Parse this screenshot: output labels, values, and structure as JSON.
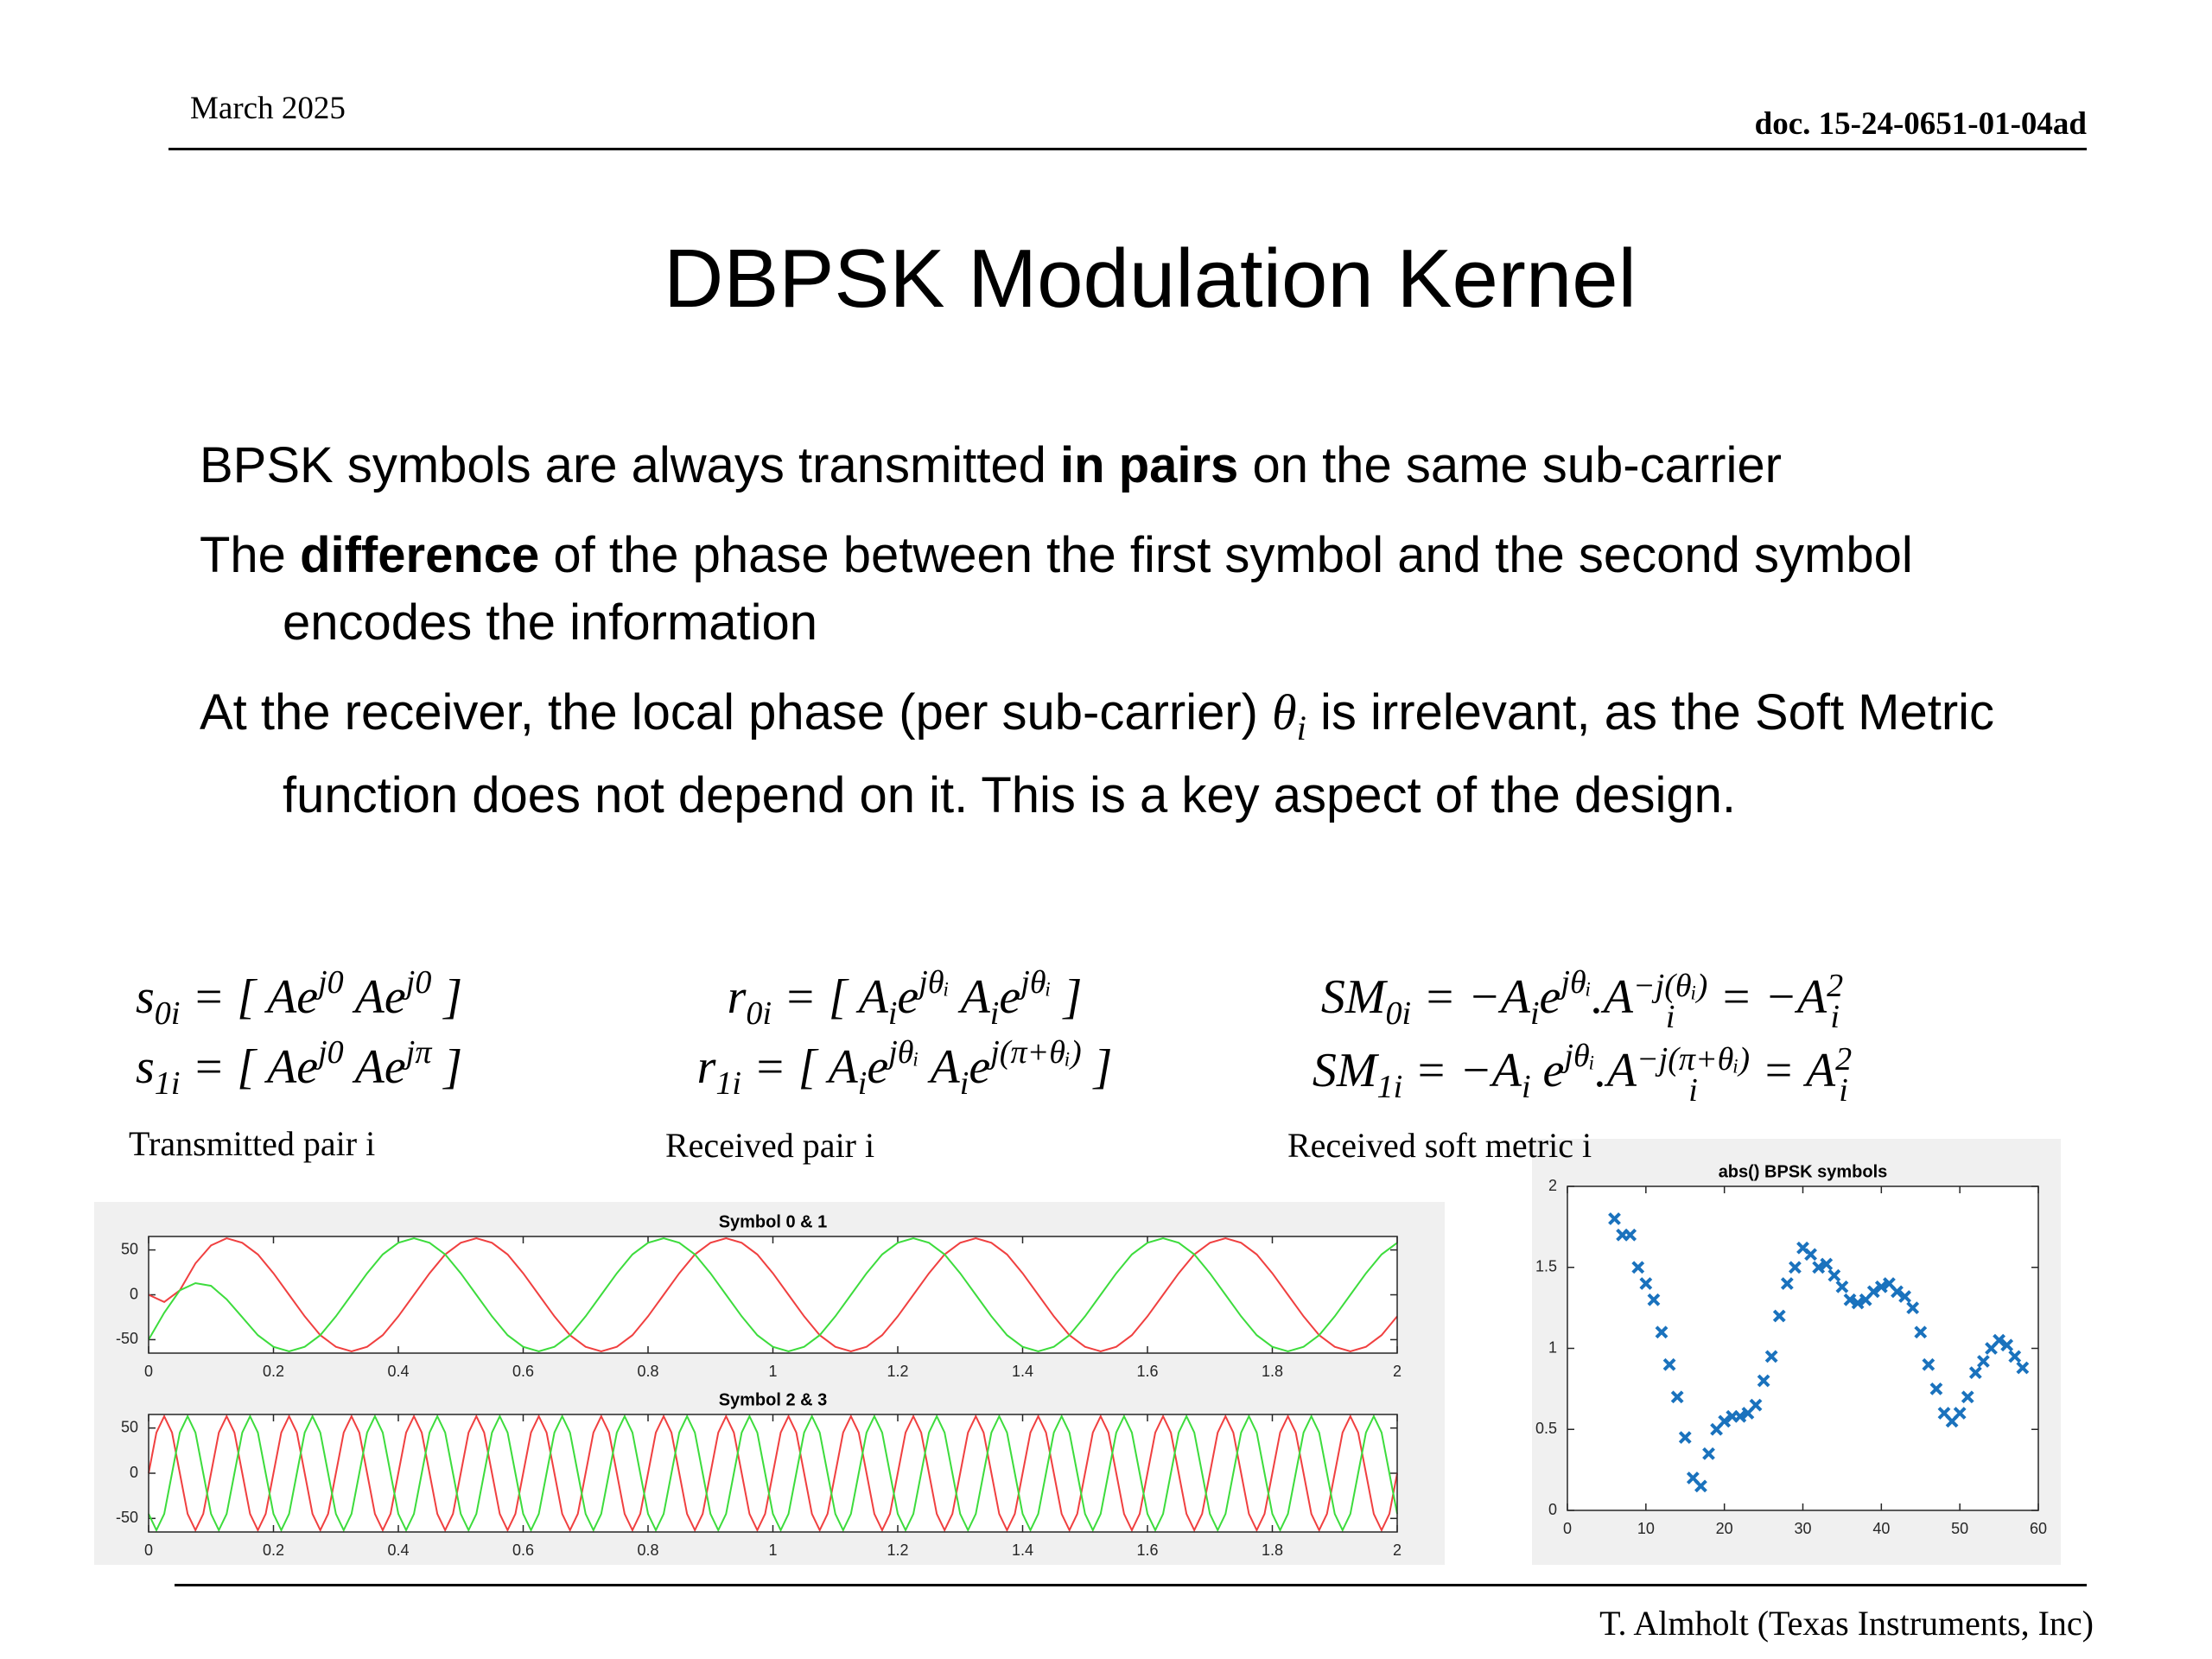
{
  "header": {
    "date": "March 2025",
    "doc": "doc. 15-24-0651-01-04ad"
  },
  "title": "DBPSK Modulation Kernel",
  "bullets": [
    [
      "BPSK symbols are always transmitted ",
      "in pairs",
      " on the same sub-carrier"
    ],
    [
      "The ",
      "difference",
      " of the phase between the first symbol and the second symbol encodes the information"
    ],
    [
      "At the receiver, the local phase (per sub-carrier) ",
      "θ",
      "i",
      " is irrelevant, as the Soft Metric function does not depend on it. This is a key aspect of the design."
    ]
  ],
  "equations": [
    [
      "s",
      "0i",
      " = [ Ae",
      "j0",
      " Ae",
      "j0",
      " ]"
    ],
    [
      "s",
      "1i",
      " = [ Ae",
      "j0",
      " Ae",
      "jπ",
      " ]"
    ],
    [
      "r",
      "0i",
      " = [ A",
      "i",
      "e",
      "jθᵢ",
      " A",
      "i",
      "e",
      "jθᵢ",
      " ]"
    ],
    [
      "r",
      "1i",
      " = [ A",
      "i",
      "e",
      "jθᵢ",
      " A",
      "i",
      "e",
      "j(π+θᵢ)",
      " ]"
    ],
    [
      "SM",
      "0i",
      " = −A",
      "i",
      "e",
      "jθᵢ",
      ".A",
      "i",
      "−j(θᵢ)",
      " = −A",
      "i",
      "2"
    ],
    [
      "SM",
      "1i",
      " = −A",
      "i",
      " e",
      "jθᵢ",
      ".A",
      "i",
      "−j(π+θᵢ)",
      " = A",
      "i",
      "2"
    ]
  ],
  "captions": [
    "Transmitted pair i",
    "Received pair i",
    "Received soft metric i"
  ],
  "chart_data": [
    {
      "type": "line",
      "title": "Symbol 0 & 1",
      "x": [
        0,
        0.025,
        0.05,
        0.075,
        0.1,
        0.125,
        0.15,
        0.175,
        0.2,
        0.225,
        0.25,
        0.275,
        0.3,
        0.325,
        0.35,
        0.375,
        0.4,
        0.425,
        0.45,
        0.475,
        0.5,
        0.525,
        0.55,
        0.575,
        0.6,
        0.625,
        0.65,
        0.675,
        0.7,
        0.725,
        0.75,
        0.775,
        0.8,
        0.825,
        0.85,
        0.875,
        0.9,
        0.925,
        0.95,
        0.975,
        1,
        1.025,
        1.05,
        1.075,
        1.1,
        1.125,
        1.15,
        1.175,
        1.2,
        1.225,
        1.25,
        1.275,
        1.3,
        1.325,
        1.35,
        1.375,
        1.4,
        1.425,
        1.45,
        1.475,
        1.5,
        1.525,
        1.55,
        1.575,
        1.6,
        1.625,
        1.65,
        1.675,
        1.7,
        1.725,
        1.75,
        1.775,
        1.8,
        1.825,
        1.85,
        1.875,
        1.9,
        1.925,
        1.95,
        1.975,
        2
      ],
      "series": [
        {
          "color": "#f04040",
          "values": [
            0,
            -8,
            5,
            35,
            55,
            63,
            58,
            45,
            24,
            0,
            -24,
            -45,
            -58,
            -63,
            -58,
            -45,
            -24,
            0,
            24,
            45,
            58,
            63,
            58,
            45,
            24,
            0,
            -24,
            -45,
            -58,
            -63,
            -58,
            -45,
            -24,
            0,
            24,
            45,
            58,
            63,
            58,
            45,
            24,
            0,
            -24,
            -45,
            -58,
            -63,
            -58,
            -45,
            -24,
            0,
            24,
            45,
            58,
            63,
            58,
            45,
            24,
            0,
            -24,
            -45,
            -58,
            -63,
            -58,
            -45,
            -24,
            0,
            24,
            45,
            58,
            63,
            58,
            45,
            24,
            0,
            -24,
            -45,
            -58,
            -63,
            -58,
            -45,
            -24
          ]
        },
        {
          "color": "#3ddc3d",
          "values": [
            -50,
            -20,
            5,
            13,
            10,
            -5,
            -25,
            -45,
            -58,
            -63,
            -58,
            -45,
            -24,
            0,
            24,
            45,
            58,
            63,
            58,
            45,
            24,
            0,
            -24,
            -45,
            -58,
            -63,
            -58,
            -45,
            -24,
            0,
            24,
            45,
            58,
            63,
            58,
            45,
            24,
            0,
            -24,
            -45,
            -58,
            -63,
            -58,
            -45,
            -24,
            0,
            24,
            45,
            58,
            63,
            58,
            45,
            24,
            0,
            -24,
            -45,
            -58,
            -63,
            -58,
            -45,
            -24,
            0,
            24,
            45,
            58,
            63,
            58,
            45,
            24,
            0,
            -24,
            -45,
            -58,
            -63,
            -58,
            -45,
            -24,
            0,
            24,
            45,
            58
          ]
        }
      ],
      "xlim": [
        0,
        2
      ],
      "xticks": [
        0,
        0.2,
        0.4,
        0.6,
        0.8,
        1,
        1.2,
        1.4,
        1.6,
        1.8,
        2
      ],
      "ylim": [
        -65,
        65
      ],
      "yticks": [
        -50,
        0,
        50
      ]
    },
    {
      "type": "line",
      "title": "Symbol 2 & 3",
      "x": [
        0,
        0.0125,
        0.025,
        0.0375,
        0.05,
        0.0625,
        0.075,
        0.0875,
        0.1,
        0.1125,
        0.125,
        0.1375,
        0.15,
        0.1625,
        0.175,
        0.1875,
        0.2,
        0.2125,
        0.225,
        0.2375,
        0.25,
        0.2625,
        0.275,
        0.2875,
        0.3,
        0.3125,
        0.325,
        0.3375,
        0.35,
        0.3625,
        0.375,
        0.3875,
        0.4,
        0.4125,
        0.425,
        0.4375,
        0.45,
        0.4625,
        0.475,
        0.4875,
        0.5,
        0.5125,
        0.525,
        0.5375,
        0.55,
        0.5625,
        0.575,
        0.5875,
        0.6,
        0.6125,
        0.625,
        0.6375,
        0.65,
        0.6625,
        0.675,
        0.6875,
        0.7,
        0.7125,
        0.725,
        0.7375,
        0.75,
        0.7625,
        0.775,
        0.7875,
        0.8,
        0.8125,
        0.825,
        0.8375,
        0.85,
        0.8625,
        0.875,
        0.8875,
        0.9,
        0.9125,
        0.925,
        0.9375,
        0.95,
        0.9625,
        0.975,
        0.9875,
        1,
        1.0125,
        1.025,
        1.0375,
        1.05,
        1.0625,
        1.075,
        1.0875,
        1.1,
        1.1125,
        1.125,
        1.1375,
        1.15,
        1.1625,
        1.175,
        1.1875,
        1.2,
        1.2125,
        1.225,
        1.2375,
        1.25,
        1.2625,
        1.275,
        1.2875,
        1.3,
        1.3125,
        1.325,
        1.3375,
        1.35,
        1.3625,
        1.375,
        1.3875,
        1.4,
        1.4125,
        1.425,
        1.4375,
        1.45,
        1.4625,
        1.475,
        1.4875,
        1.5,
        1.5125,
        1.525,
        1.5375,
        1.55,
        1.5625,
        1.575,
        1.5875,
        1.6,
        1.6125,
        1.625,
        1.6375,
        1.65,
        1.6625,
        1.675,
        1.6875,
        1.7,
        1.7125,
        1.725,
        1.7375,
        1.75,
        1.7625,
        1.775,
        1.7875,
        1.8,
        1.8125,
        1.825,
        1.8375,
        1.85,
        1.8625,
        1.875,
        1.8875,
        1.9,
        1.9125,
        1.925,
        1.9375,
        1.95,
        1.9625,
        1.975,
        1.9875,
        2
      ],
      "series": [
        {
          "color": "#f04040",
          "values": [
            0,
            45,
            63,
            45,
            0,
            -45,
            -63,
            -45,
            0,
            45,
            63,
            45,
            0,
            -45,
            -63,
            -45,
            0,
            45,
            63,
            45,
            0,
            -45,
            -63,
            -45,
            0,
            45,
            63,
            45,
            0,
            -45,
            -63,
            -45,
            0,
            45,
            63,
            45,
            0,
            -45,
            -63,
            -45,
            0,
            45,
            63,
            45,
            0,
            -45,
            -63,
            -45,
            0,
            45,
            63,
            45,
            0,
            -45,
            -63,
            -45,
            0,
            45,
            63,
            45,
            0,
            -45,
            -63,
            -45,
            0,
            45,
            63,
            45,
            0,
            -45,
            -63,
            -45,
            0,
            45,
            63,
            45,
            0,
            -45,
            -63,
            -45,
            0,
            45,
            63,
            45,
            0,
            -45,
            -63,
            -45,
            0,
            45,
            63,
            45,
            0,
            -45,
            -63,
            -45,
            0,
            45,
            63,
            45,
            0,
            -45,
            -63,
            -45,
            0,
            45,
            63,
            45,
            0,
            -45,
            -63,
            -45,
            0,
            45,
            63,
            45,
            0,
            -45,
            -63,
            -45,
            0,
            45,
            63,
            45,
            0,
            -45,
            -63,
            -45,
            0,
            45,
            63,
            45,
            0,
            -45,
            -63,
            -45,
            0,
            45,
            63,
            45,
            0,
            -45,
            -63,
            -45,
            0,
            45,
            63,
            45,
            0,
            -45,
            -63,
            -45,
            0,
            45,
            63,
            45,
            0,
            -45,
            -63,
            -45,
            0
          ]
        },
        {
          "color": "#3ddc3d",
          "values": [
            -45,
            -63,
            -45,
            0,
            45,
            63,
            45,
            0,
            -45,
            -63,
            -45,
            0,
            45,
            63,
            45,
            0,
            -45,
            -63,
            -45,
            0,
            45,
            63,
            45,
            0,
            -45,
            -63,
            -45,
            0,
            45,
            63,
            45,
            0,
            -45,
            -63,
            -45,
            0,
            45,
            63,
            45,
            0,
            -45,
            -63,
            -45,
            0,
            45,
            63,
            45,
            0,
            -45,
            -63,
            -45,
            0,
            45,
            63,
            45,
            0,
            -45,
            -63,
            -45,
            0,
            45,
            63,
            45,
            0,
            -45,
            -63,
            -45,
            0,
            45,
            63,
            45,
            0,
            -45,
            -63,
            -45,
            0,
            45,
            63,
            45,
            0,
            -45,
            -63,
            -45,
            0,
            45,
            63,
            45,
            0,
            -45,
            -63,
            -45,
            0,
            45,
            63,
            45,
            0,
            -45,
            -63,
            -45,
            0,
            45,
            63,
            45,
            0,
            -45,
            -63,
            -45,
            0,
            45,
            63,
            45,
            0,
            -45,
            -63,
            -45,
            0,
            45,
            63,
            45,
            0,
            -45,
            -63,
            -45,
            0,
            45,
            63,
            45,
            0,
            -45,
            -63,
            -45,
            0,
            45,
            63,
            45,
            0,
            -45,
            -63,
            -45,
            0,
            45,
            63,
            45,
            0,
            -45,
            -63,
            -45,
            0,
            45,
            63,
            45,
            0,
            -45,
            -63,
            -45,
            0,
            45,
            63,
            45,
            0,
            -45
          ]
        }
      ],
      "xlim": [
        0,
        2
      ],
      "xticks": [
        0,
        0.2,
        0.4,
        0.6,
        0.8,
        1,
        1.2,
        1.4,
        1.6,
        1.8,
        2
      ],
      "ylim": [
        -65,
        65
      ],
      "yticks": [
        -50,
        0,
        50
      ]
    },
    {
      "type": "scatter",
      "title": "abs() BPSK symbols",
      "color": "#1a72bd",
      "x": [
        6,
        7,
        8,
        9,
        10,
        11,
        12,
        13,
        14,
        15,
        16,
        17,
        18,
        19,
        20,
        21,
        22,
        23,
        24,
        25,
        26,
        27,
        28,
        29,
        30,
        31,
        32,
        33,
        34,
        35,
        36,
        37,
        38,
        39,
        40,
        41,
        42,
        43,
        44,
        45,
        46,
        47,
        48,
        49,
        50,
        51,
        52,
        53,
        54,
        55,
        56,
        57,
        58
      ],
      "values": [
        1.8,
        1.7,
        1.7,
        1.5,
        1.4,
        1.3,
        1.1,
        0.9,
        0.7,
        0.45,
        0.2,
        0.15,
        0.35,
        0.5,
        0.55,
        0.58,
        0.58,
        0.6,
        0.65,
        0.8,
        0.95,
        1.2,
        1.4,
        1.5,
        1.62,
        1.58,
        1.5,
        1.52,
        1.45,
        1.38,
        1.3,
        1.28,
        1.3,
        1.35,
        1.38,
        1.4,
        1.35,
        1.32,
        1.25,
        1.1,
        0.9,
        0.75,
        0.6,
        0.55,
        0.6,
        0.7,
        0.85,
        0.92,
        1,
        1.05,
        1.02,
        0.95,
        0.88
      ],
      "xlim": [
        0,
        60
      ],
      "xticks": [
        0,
        10,
        20,
        30,
        40,
        50,
        60
      ],
      "ylim": [
        0,
        2
      ],
      "yticks": [
        0,
        0.5,
        1,
        1.5,
        2
      ]
    }
  ],
  "footer": "T. Almholt (Texas Instruments, Inc)"
}
